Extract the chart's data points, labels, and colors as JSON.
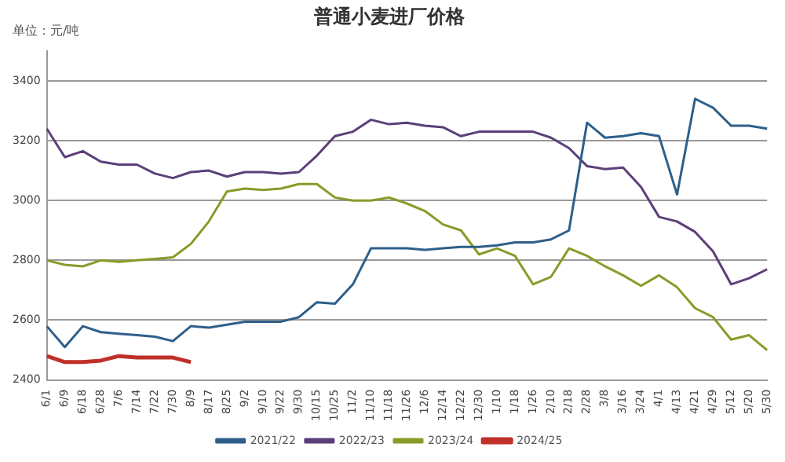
{
  "chart_data": {
    "type": "line",
    "title": "普通小麦进厂价格",
    "annotations": [
      "单位：元/吨"
    ],
    "categories": [
      "6/1",
      "6/9",
      "6/18",
      "6/28",
      "7/6",
      "7/14",
      "7/22",
      "7/30",
      "8/9",
      "8/17",
      "8/25",
      "9/2",
      "9/10",
      "9/22",
      "9/30",
      "10/15",
      "10/25",
      "11/2",
      "11/10",
      "11/18",
      "11/26",
      "12/6",
      "12/14",
      "12/22",
      "12/30",
      "1/10",
      "1/18",
      "1/26",
      "2/10",
      "2/18",
      "2/28",
      "3/8",
      "3/16",
      "3/24",
      "4/1",
      "4/13",
      "4/21",
      "4/29",
      "5/12",
      "5/20",
      "5/30"
    ],
    "series": [
      {
        "name": "2021/22",
        "color": "#2e5f8a",
        "values": [
          2580,
          2510,
          2580,
          2560,
          2555,
          2550,
          2545,
          2530,
          2580,
          2575,
          2585,
          2595,
          2595,
          2595,
          2610,
          2660,
          2655,
          2720,
          2840,
          2840,
          2840,
          2835,
          2840,
          2845,
          2845,
          2850,
          2860,
          2860,
          2870,
          2900,
          3260,
          3210,
          3215,
          3225,
          3215,
          3020,
          3340,
          3310,
          3250,
          3250,
          3240
        ]
      },
      {
        "name": "2022/23",
        "color": "#5b3f7a",
        "values": [
          3240,
          3145,
          3165,
          3130,
          3120,
          3120,
          3090,
          3075,
          3095,
          3100,
          3080,
          3095,
          3095,
          3090,
          3095,
          3150,
          3215,
          3230,
          3270,
          3255,
          3260,
          3250,
          3245,
          3215,
          3230,
          3230,
          3230,
          3230,
          3210,
          3175,
          3115,
          3105,
          3110,
          3045,
          2945,
          2930,
          2895,
          2830,
          2720,
          2740,
          2770
        ]
      },
      {
        "name": "2023/24",
        "color": "#8a9a2a",
        "values": [
          2800,
          2785,
          2780,
          2800,
          2795,
          2800,
          2805,
          2810,
          2855,
          2930,
          3030,
          3040,
          3035,
          3040,
          3055,
          3055,
          3010,
          3000,
          3000,
          3010,
          2990,
          2965,
          2920,
          2900,
          2820,
          2840,
          2815,
          2720,
          2745,
          2840,
          2815,
          2780,
          2750,
          2715,
          2750,
          2710,
          2640,
          2610,
          2535,
          2550,
          2500
        ]
      },
      {
        "name": "2024/25",
        "color": "#c0302a",
        "values": [
          2480,
          2460,
          2460,
          2465,
          2480,
          2475,
          2475,
          2475,
          2460,
          null,
          null,
          null,
          null,
          null,
          null,
          null,
          null,
          null,
          null,
          null,
          null,
          null,
          null,
          null,
          null,
          null,
          null,
          null,
          null,
          null,
          null,
          null,
          null,
          null,
          null,
          null,
          null,
          null,
          null,
          null,
          null
        ]
      }
    ],
    "ylim": [
      2400,
      3500
    ],
    "yticks": [
      2400,
      2600,
      2800,
      3000,
      3200,
      3400
    ],
    "grid": "y",
    "legend": "bottom",
    "marker": "none",
    "line_style": "solid"
  }
}
